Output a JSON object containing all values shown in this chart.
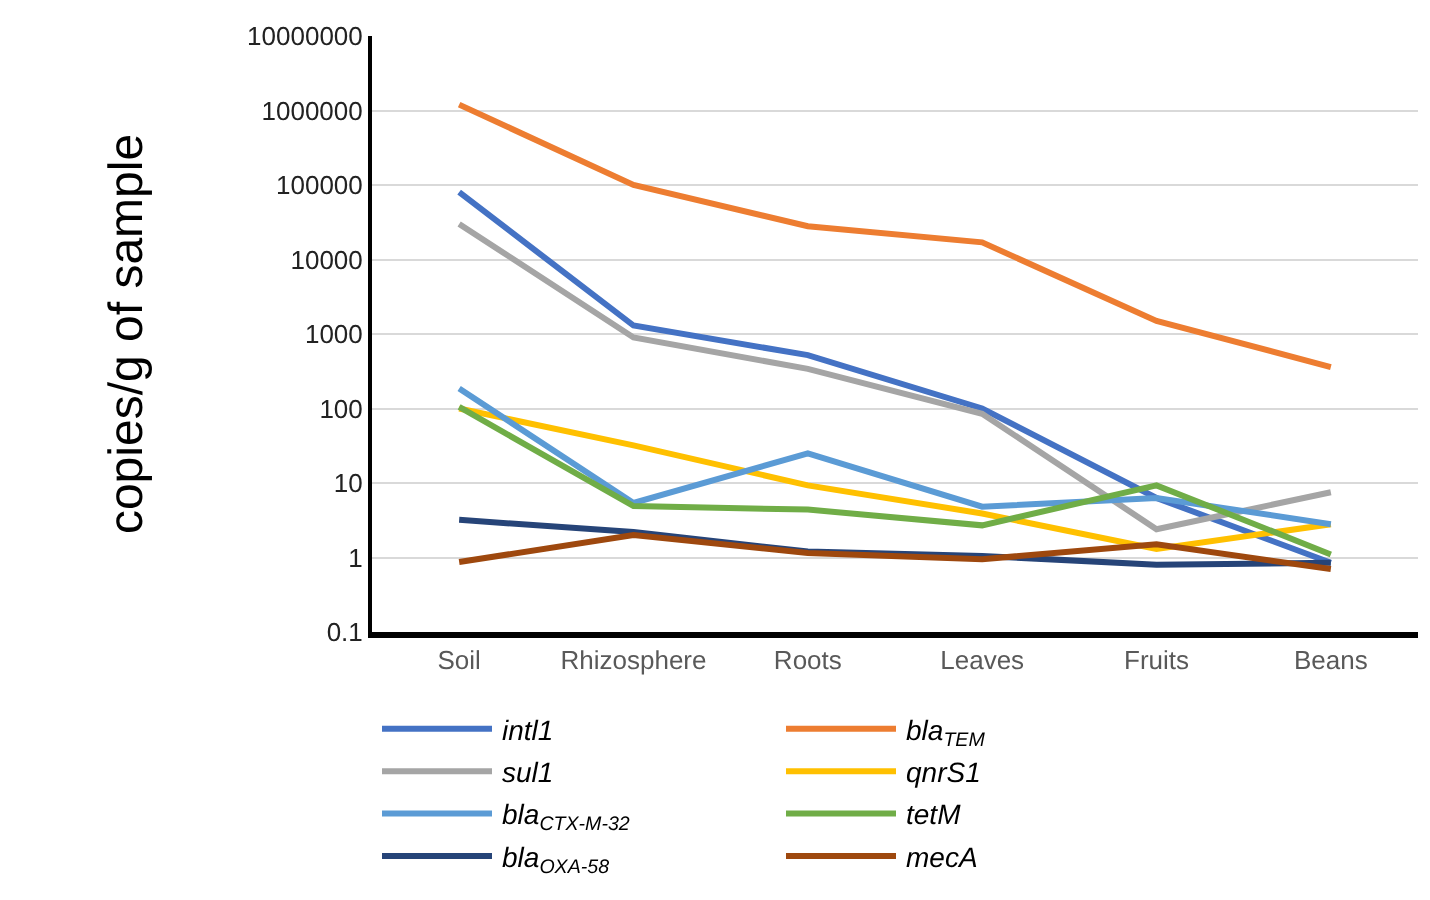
{
  "chart_data": {
    "type": "line",
    "ylabel": "copies/g of sample",
    "categories": [
      "Soil",
      "Rhizosphere",
      "Roots",
      "Leaves",
      "Fruits",
      "Beans"
    ],
    "log": true,
    "ylim": [
      0.1,
      10000000
    ],
    "yticks": [
      0.1,
      1,
      10,
      100,
      1000,
      10000,
      100000,
      1000000,
      10000000
    ],
    "grid": "y",
    "legend": "bottom",
    "marker": "none",
    "line_style": "solid",
    "series": [
      {
        "name": "intl1",
        "color": "#4472c4",
        "values": [
          80000,
          1300,
          520,
          100,
          6.3,
          0.85
        ]
      },
      {
        "name": "bla$_{TEM}$",
        "color": "#ed7d31",
        "values": [
          1200000,
          100000,
          28000,
          17000,
          1500,
          360
        ]
      },
      {
        "name": "sul1",
        "color": "#a5a5a5",
        "values": [
          30000,
          900,
          340,
          85,
          2.4,
          7.5
        ]
      },
      {
        "name": "qnrS1",
        "color": "#ffc000",
        "values": [
          100,
          32,
          9.3,
          3.9,
          1.3,
          2.8
        ]
      },
      {
        "name": "bla$_{CTX-M-32}$",
        "color": "#5b9bd5",
        "values": [
          185,
          5.4,
          25,
          4.8,
          6.3,
          2.8
        ]
      },
      {
        "name": "tetM",
        "color": "#70ad47",
        "values": [
          105,
          4.9,
          4.4,
          2.7,
          9.3,
          1.1
        ]
      },
      {
        "name": "bla$_{OXA-58}$",
        "color": "#264478",
        "values": [
          3.2,
          2.2,
          1.2,
          1.05,
          0.8,
          0.85
        ]
      },
      {
        "name": "mecA",
        "color": "#9e480e",
        "values": [
          0.87,
          2.0,
          1.15,
          0.95,
          1.5,
          0.7
        ]
      }
    ]
  }
}
